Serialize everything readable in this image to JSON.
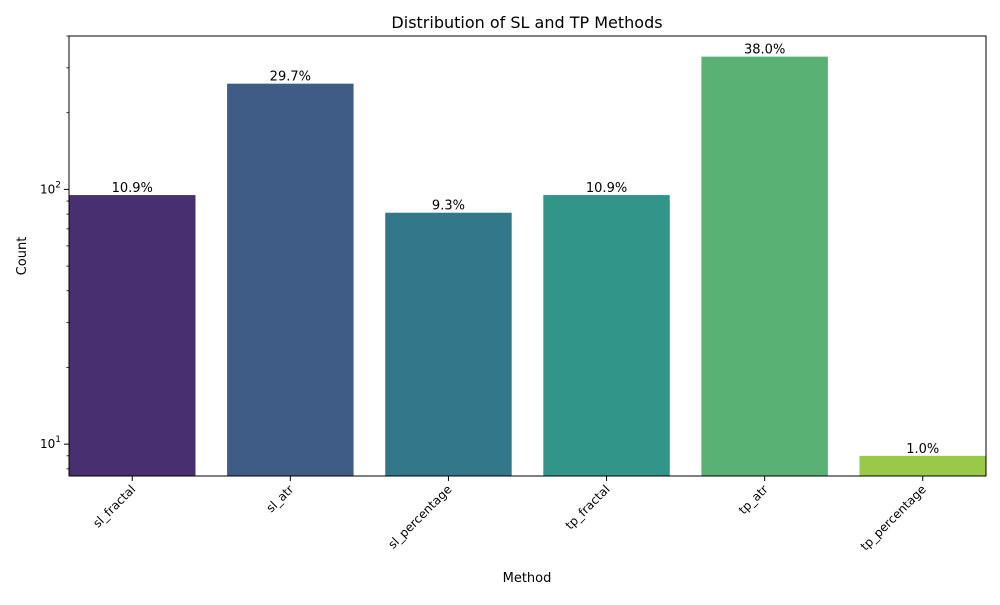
{
  "chart_data": {
    "type": "bar",
    "title": "Distribution of SL and TP Methods",
    "xlabel": "Method",
    "ylabel": "Count",
    "yscale": "log",
    "ylim": [
      7.5,
      400
    ],
    "y_ticks": [
      {
        "value": 10,
        "base": "10",
        "exp": "1"
      },
      {
        "value": 100,
        "base": "10",
        "exp": "2"
      }
    ],
    "categories": [
      "sl_fractal",
      "sl_atr",
      "sl_percentage",
      "tp_fractal",
      "tp_atr",
      "tp_percentage"
    ],
    "values": [
      95,
      260,
      81,
      95,
      332,
      9
    ],
    "labels": [
      "10.9%",
      "29.7%",
      "9.3%",
      "10.9%",
      "38.0%",
      "1.0%"
    ],
    "colors": [
      "#482f70",
      "#3e5c86",
      "#33778a",
      "#31958a",
      "#59b273",
      "#9ac849"
    ],
    "grid": false,
    "legend": "none"
  }
}
